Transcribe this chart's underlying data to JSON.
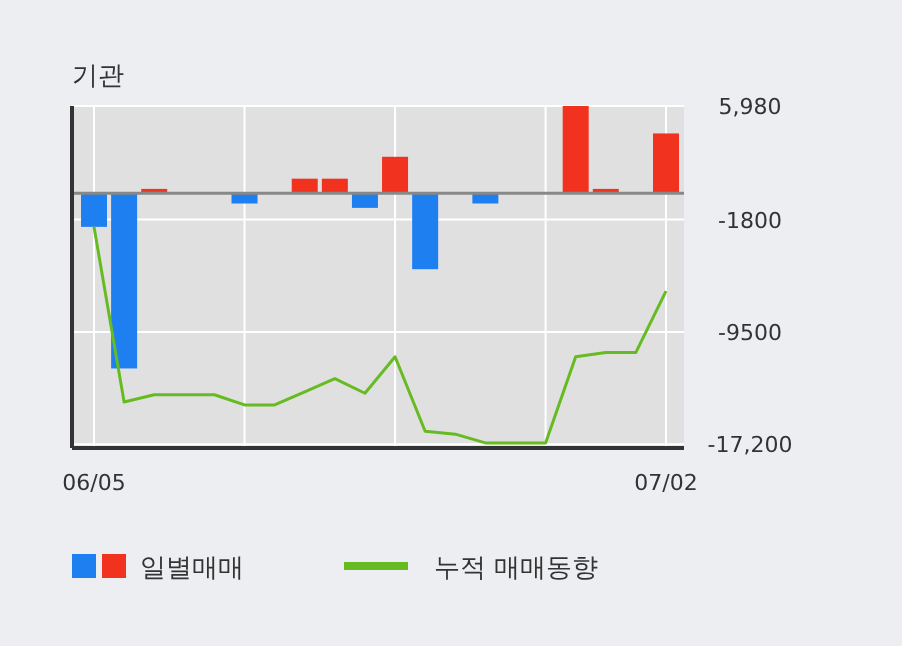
{
  "chart_data": {
    "type": "bar",
    "title": "기관",
    "categories": [
      "06/05",
      null,
      null,
      null,
      null,
      null,
      null,
      null,
      null,
      null,
      null,
      null,
      null,
      null,
      null,
      null,
      null,
      null,
      null,
      "07/02"
    ],
    "series": [
      {
        "name": "일별매매",
        "colors": [
          "#1e7ff0",
          "#1e7ff0",
          "#f0321e",
          "#f0321e",
          "#f0321e",
          "#1e7ff0",
          "#f0321e",
          "#f0321e",
          "#f0321e",
          "#1e7ff0",
          "#f0321e",
          "#1e7ff0",
          "#f0321e",
          "#1e7ff0",
          "#f0321e",
          "#f0321e",
          "#f0321e",
          "#f0321e",
          "#f0321e",
          "#f0321e"
        ],
        "values": [
          -2300,
          -12000,
          300,
          0,
          0,
          -700,
          0,
          1000,
          1000,
          -1000,
          2500,
          -5200,
          0,
          -700,
          0,
          0,
          5980,
          300,
          0,
          4100
        ]
      },
      {
        "name": "누적 매매동향",
        "type": "line",
        "color": "#66bb22",
        "values": [
          -2300,
          -14300,
          -13800,
          -13800,
          -13800,
          -14500,
          -14500,
          -13600,
          -12700,
          -13700,
          -11200,
          -16300,
          -16500,
          -17100,
          -17100,
          -17100,
          -11200,
          -10900,
          -10900,
          -6700
        ]
      }
    ],
    "ylim": [
      -17450,
      5980
    ],
    "yticks": [
      {
        "value": 5980,
        "label": "5,980"
      },
      {
        "value": -1800,
        "label": "-1800"
      },
      {
        "value": -9500,
        "label": "-9500"
      },
      {
        "value": -17200,
        "label": "-17,200"
      }
    ],
    "grid": true,
    "legend": "bottom"
  }
}
